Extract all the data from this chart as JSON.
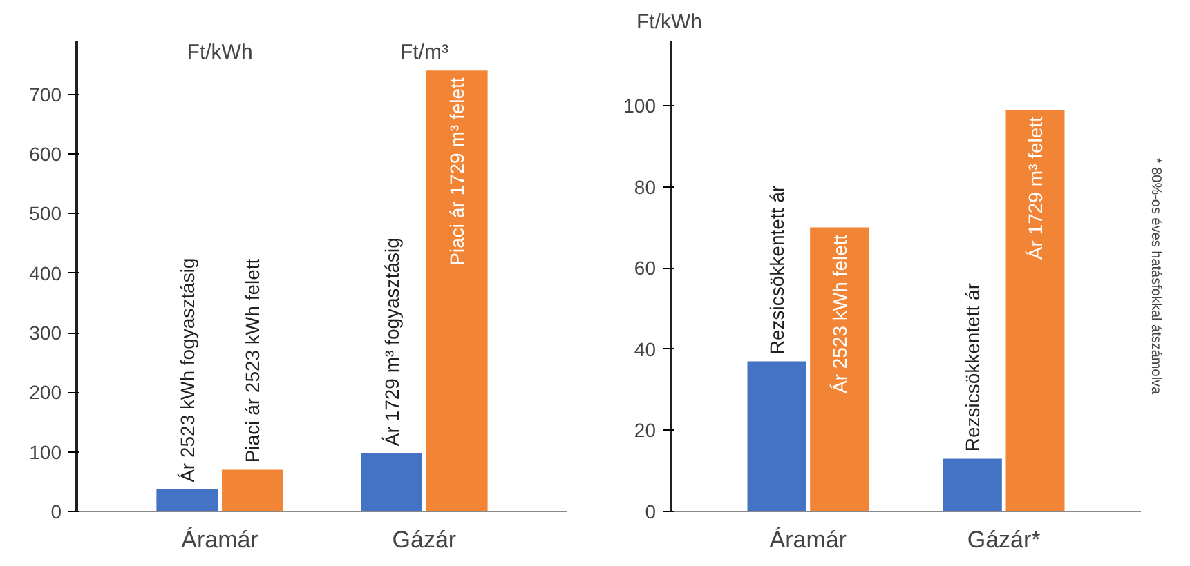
{
  "chart_data": [
    {
      "type": "bar",
      "categories": [
        "Áramár",
        "Gázár"
      ],
      "ylim": [
        0,
        790
      ],
      "yticks": [
        0,
        100,
        200,
        300,
        400,
        500,
        600,
        700
      ],
      "grid": false,
      "annotations": [
        "Ft/kWh",
        "Ft/m³"
      ],
      "series": [
        {
          "color": "#4472c4",
          "values": [
            37,
            98
          ],
          "value_labels": [
            "Ár 2523 kWh fogyasztásig",
            "Ár 1729 m³ fogyasztásig"
          ]
        },
        {
          "color": "#f28535",
          "values": [
            70,
            740
          ],
          "value_labels": [
            "Piaci ár 2523 kWh felett",
            "Piaci ár 1729 m³ felett"
          ]
        }
      ]
    },
    {
      "type": "bar",
      "categories": [
        "Áramár",
        "Gázár*"
      ],
      "ylabel": "Ft/kWh",
      "ylim": [
        0,
        116
      ],
      "yticks": [
        0,
        20,
        40,
        60,
        80,
        100
      ],
      "grid": false,
      "annotations": [
        "* 80%-os éves hatásfokkal átszámolva"
      ],
      "series": [
        {
          "color": "#4472c4",
          "values": [
            37,
            13
          ],
          "value_labels": [
            "Rezsicsökkentett ár",
            "Rezsicsökkentett ár"
          ]
        },
        {
          "color": "#f28535",
          "values": [
            70,
            99
          ],
          "value_labels": [
            "Ár 2523 kWh felett",
            "Ár 1729 m³ felett"
          ]
        }
      ]
    }
  ]
}
